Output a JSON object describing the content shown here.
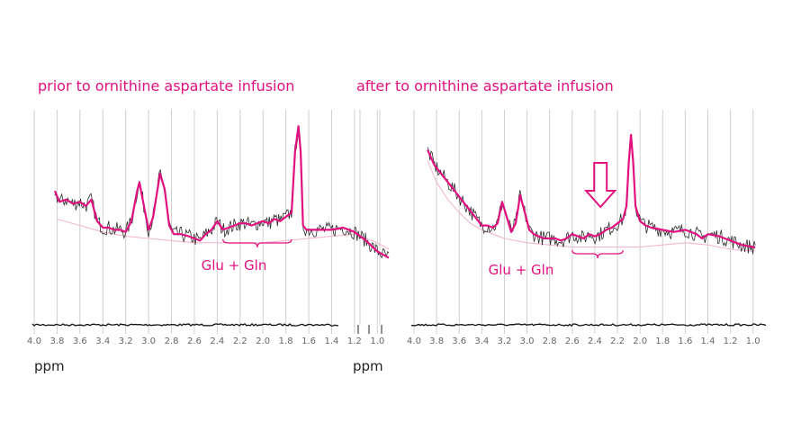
{
  "page": {
    "left_title": "prior to ornithine aspartate infusion",
    "right_title": "after to ornithine aspartate infusion",
    "left_unit": "ppm",
    "right_unit": "ppm"
  },
  "colors": {
    "accent": "#e0117f",
    "spectrum": "#2b2b2b",
    "baseline_fit": "#f2b6cf",
    "grid": "#cfcfcf",
    "tick_label": "#666666"
  },
  "chart_data": [
    {
      "type": "line",
      "title": "prior to ornithine aspartate infusion",
      "xlabel": "ppm",
      "ylabel": "",
      "x_reversed": true,
      "xlim": [
        4.0,
        0.9
      ],
      "ylim": [
        0,
        1
      ],
      "ticks": [
        "4.0",
        "3.8",
        "3.6",
        "3.4",
        "3.2",
        "3.0",
        "2.8",
        "2.6",
        "2.4",
        "2.2",
        "2.0",
        "1.8",
        "1.6",
        "1.4",
        "1.2",
        "1.0"
      ],
      "grid": true,
      "annotation": {
        "label": "Glu + Gln",
        "from": 2.35,
        "to": 1.75
      },
      "series": [
        {
          "name": "fitted spectrum",
          "x": [
            3.82,
            3.78,
            3.72,
            3.66,
            3.6,
            3.55,
            3.5,
            3.45,
            3.4,
            3.35,
            3.3,
            3.25,
            3.2,
            3.15,
            3.1,
            3.08,
            3.03,
            3.0,
            2.96,
            2.9,
            2.86,
            2.82,
            2.78,
            2.72,
            2.65,
            2.6,
            2.55,
            2.5,
            2.45,
            2.4,
            2.35,
            2.3,
            2.25,
            2.2,
            2.15,
            2.1,
            2.05,
            2.0,
            1.95,
            1.9,
            1.85,
            1.8,
            1.75,
            1.72,
            1.69,
            1.67,
            1.65,
            1.62,
            1.58,
            1.5,
            1.4,
            1.3,
            1.2,
            1.1,
            1.0,
            0.9
          ],
          "y": [
            0.62,
            0.57,
            0.58,
            0.56,
            0.57,
            0.55,
            0.58,
            0.48,
            0.45,
            0.45,
            0.44,
            0.44,
            0.43,
            0.48,
            0.62,
            0.66,
            0.52,
            0.44,
            0.5,
            0.7,
            0.63,
            0.46,
            0.42,
            0.42,
            0.41,
            0.4,
            0.39,
            0.42,
            0.44,
            0.48,
            0.44,
            0.45,
            0.46,
            0.47,
            0.47,
            0.46,
            0.47,
            0.48,
            0.47,
            0.49,
            0.48,
            0.5,
            0.52,
            0.8,
            0.92,
            0.8,
            0.46,
            0.44,
            0.44,
            0.44,
            0.44,
            0.45,
            0.43,
            0.39,
            0.34,
            0.31
          ]
        },
        {
          "name": "baseline",
          "x": [
            3.8,
            3.6,
            3.4,
            3.2,
            3.0,
            2.8,
            2.6,
            2.4,
            2.2,
            2.0,
            1.8,
            1.6,
            1.4,
            1.2,
            1.0,
            0.9
          ],
          "y": [
            0.49,
            0.46,
            0.43,
            0.41,
            0.4,
            0.39,
            0.38,
            0.38,
            0.38,
            0.38,
            0.39,
            0.4,
            0.41,
            0.42,
            0.38,
            0.35
          ]
        }
      ]
    },
    {
      "type": "line",
      "title": "after to ornithine aspartate infusion",
      "xlabel": "ppm",
      "ylabel": "",
      "x_reversed": true,
      "xlim": [
        4.0,
        0.95
      ],
      "ylim": [
        0,
        1
      ],
      "ticks": [
        "4.0",
        "3.8",
        "3.6",
        "3.4",
        "3.2",
        "3.0",
        "2.8",
        "2.6",
        "2.4",
        "2.2",
        "2.0",
        "1.8",
        "1.6",
        "1.4",
        "1.2",
        "1.0"
      ],
      "grid": true,
      "annotation": {
        "label": "Glu + Gln",
        "from": 2.6,
        "to": 2.15
      },
      "arrow_at": 2.35,
      "series": [
        {
          "name": "fitted spectrum",
          "x": [
            3.88,
            3.82,
            3.76,
            3.7,
            3.64,
            3.58,
            3.52,
            3.46,
            3.4,
            3.35,
            3.3,
            3.26,
            3.22,
            3.18,
            3.14,
            3.1,
            3.06,
            3.02,
            2.98,
            2.94,
            2.9,
            2.85,
            2.8,
            2.75,
            2.7,
            2.65,
            2.6,
            2.55,
            2.5,
            2.45,
            2.4,
            2.35,
            2.3,
            2.25,
            2.2,
            2.15,
            2.12,
            2.1,
            2.08,
            2.06,
            2.04,
            2.0,
            1.95,
            1.9,
            1.8,
            1.7,
            1.6,
            1.5,
            1.45,
            1.4,
            1.3,
            1.2,
            1.1,
            1.0,
            0.98
          ],
          "y": [
            0.81,
            0.74,
            0.7,
            0.66,
            0.62,
            0.58,
            0.54,
            0.5,
            0.46,
            0.46,
            0.45,
            0.47,
            0.57,
            0.5,
            0.43,
            0.47,
            0.6,
            0.52,
            0.44,
            0.42,
            0.41,
            0.4,
            0.4,
            0.4,
            0.39,
            0.4,
            0.42,
            0.41,
            0.4,
            0.42,
            0.41,
            0.42,
            0.44,
            0.45,
            0.47,
            0.49,
            0.55,
            0.75,
            0.88,
            0.75,
            0.55,
            0.48,
            0.46,
            0.45,
            0.44,
            0.43,
            0.44,
            0.42,
            0.4,
            0.42,
            0.41,
            0.39,
            0.37,
            0.36,
            0.36
          ]
        },
        {
          "name": "baseline",
          "x": [
            3.88,
            3.8,
            3.7,
            3.6,
            3.5,
            3.4,
            3.3,
            3.2,
            3.0,
            2.8,
            2.6,
            2.4,
            2.2,
            2.0,
            1.8,
            1.6,
            1.4,
            1.2,
            1.0
          ],
          "y": [
            0.76,
            0.66,
            0.58,
            0.52,
            0.47,
            0.44,
            0.42,
            0.4,
            0.38,
            0.37,
            0.36,
            0.36,
            0.36,
            0.36,
            0.37,
            0.38,
            0.37,
            0.35,
            0.34
          ]
        }
      ]
    }
  ]
}
